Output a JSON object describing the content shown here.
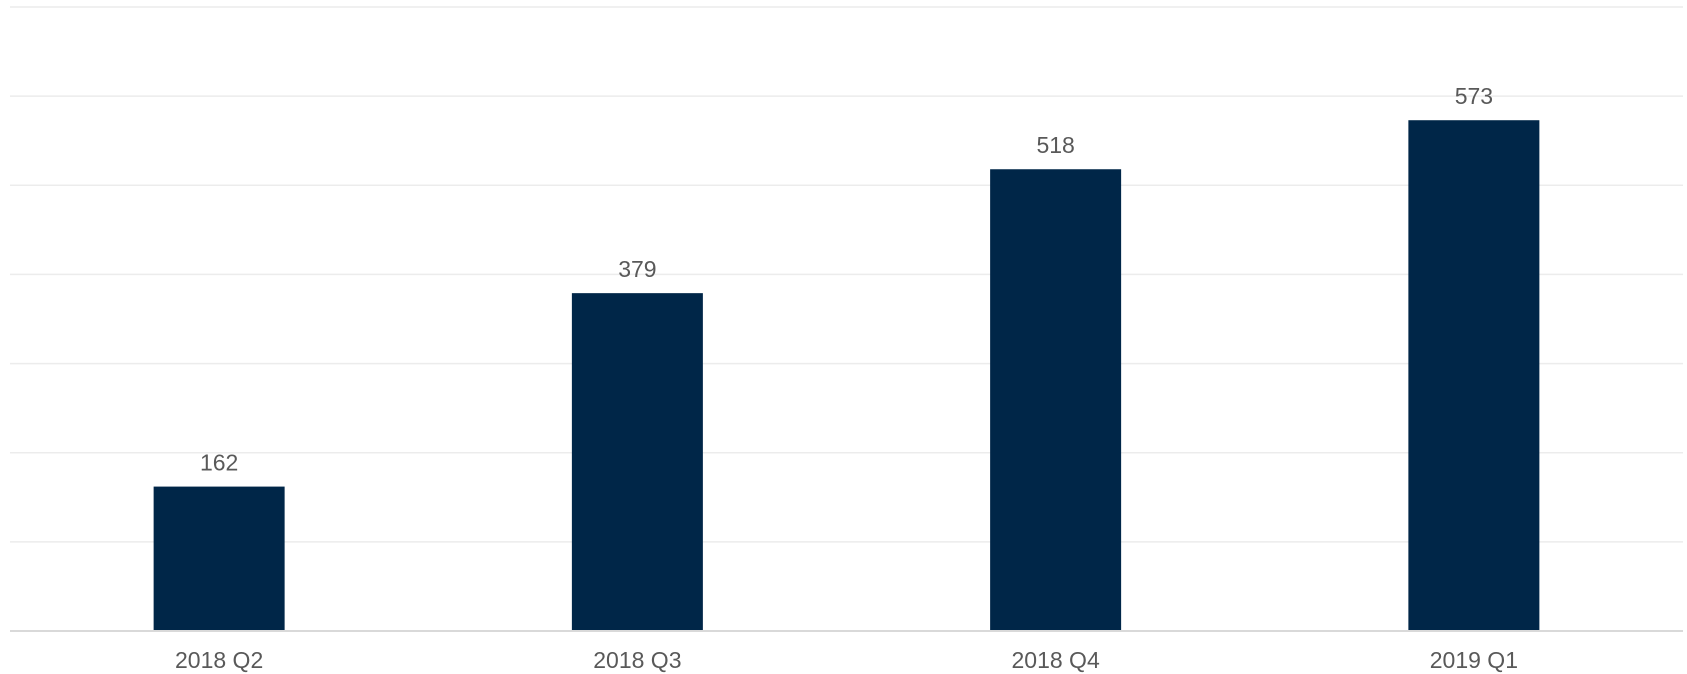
{
  "chart_data": {
    "type": "bar",
    "title": "",
    "xlabel": "",
    "ylabel": "",
    "categories": [
      "2018 Q2",
      "2018 Q3",
      "2018 Q4",
      "2019 Q1"
    ],
    "values": [
      162,
      379,
      518,
      573
    ],
    "data_labels": [
      "162",
      "379",
      "518",
      "573"
    ],
    "ylim": [
      0,
      700
    ],
    "grid": true,
    "legend": "none",
    "colors": {
      "bar": "#002648",
      "gridline": "#ececec",
      "baseline": "#d9d9d9",
      "text": "#595959"
    }
  }
}
